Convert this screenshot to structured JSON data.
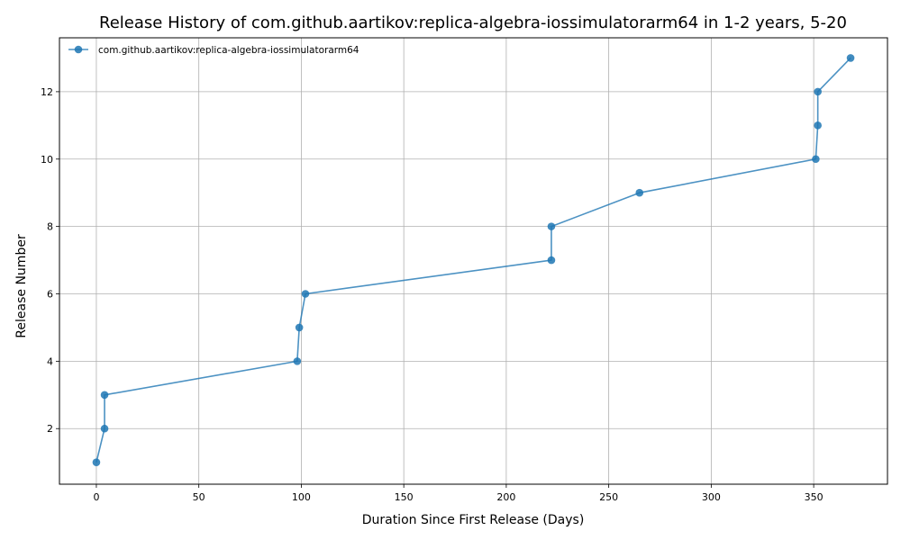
{
  "chart_data": {
    "type": "line",
    "title": "Release History of com.github.aartikov:replica-algebra-iossimulatorarm64 in 1-2 years, 5-20",
    "xlabel": "Duration Since First Release (Days)",
    "ylabel": "Release Number",
    "xlim": [
      -18,
      386
    ],
    "ylim": [
      0.35,
      13.6
    ],
    "xticks": [
      0,
      50,
      100,
      150,
      200,
      250,
      300,
      350
    ],
    "yticks": [
      2,
      4,
      6,
      8,
      10,
      12
    ],
    "grid": true,
    "legend_position": "top-left",
    "series": [
      {
        "name": "com.github.aartikov:replica-algebra-iossimulatorarm64",
        "color": "#1f77b4",
        "marker": "circle",
        "points": [
          {
            "x": 0,
            "y": 1
          },
          {
            "x": 4,
            "y": 2
          },
          {
            "x": 4,
            "y": 3
          },
          {
            "x": 98,
            "y": 4
          },
          {
            "x": 99,
            "y": 5
          },
          {
            "x": 102,
            "y": 6
          },
          {
            "x": 222,
            "y": 7
          },
          {
            "x": 222,
            "y": 8
          },
          {
            "x": 265,
            "y": 9
          },
          {
            "x": 351,
            "y": 10
          },
          {
            "x": 352,
            "y": 11
          },
          {
            "x": 352,
            "y": 12
          },
          {
            "x": 368,
            "y": 13
          }
        ]
      }
    ]
  }
}
